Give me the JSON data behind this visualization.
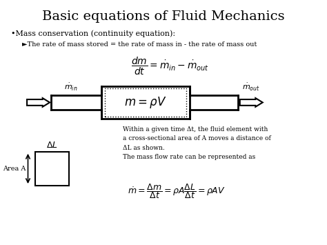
{
  "title": "Basic equations of Fluid Mechanics",
  "title_fontsize": 14,
  "text_color": "#000000",
  "fig_width": 4.74,
  "fig_height": 3.55,
  "dpi": 100,
  "bullet1": "•Mass conservation (continuity equation):",
  "arrow1": "►The rate of mass stored = the rate of mass in - the rate of mass out",
  "eq1": "$\\dfrac{dm}{dt} = \\dot{m}_{in} - \\dot{m}_{out}$",
  "eq_box": "$m = \\rho V$",
  "m_dot_in": "$\\dot{m}_{in}$",
  "m_dot_out": "$\\dot{m}_{out}$",
  "area_label": "Area A",
  "delta_L": "$\\Delta L$",
  "text_line1": "Within a given time Δt, the fluid element with",
  "text_line2": "a cross-sectional area of A moves a distance of",
  "text_line3": "ΔL as shown.",
  "text_line4": "The mass flow rate can be represented as",
  "eq2": "$\\dot{m} = \\dfrac{\\Delta m}{\\Delta t} = \\rho A\\dfrac{\\Delta L}{\\Delta t} = \\rho AV$"
}
